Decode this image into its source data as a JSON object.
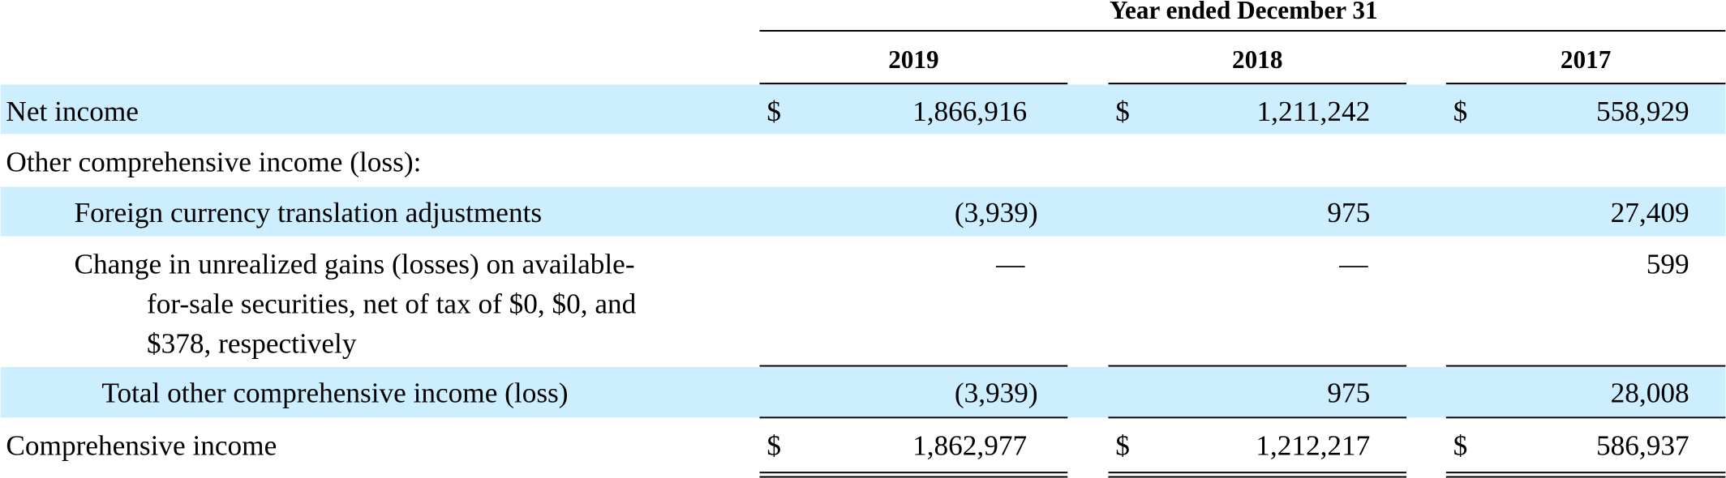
{
  "header": {
    "title": "Year ended December 31",
    "columns": [
      "2019",
      "2018",
      "2017"
    ]
  },
  "rows": [
    {
      "label": [
        "Net income"
      ],
      "currency": "$",
      "values": [
        "1,866,916",
        "1,211,242",
        "558,929"
      ]
    },
    {
      "label": [
        "Other comprehensive income (loss):"
      ]
    },
    {
      "label": [
        "Foreign currency translation adjustments"
      ],
      "values": [
        "(3,939)",
        "975",
        "27,409"
      ]
    },
    {
      "label": [
        "Change in unrealized gains (losses) on available-",
        "for-sale securities, net of tax of $0, $0, and",
        "$378, respectively"
      ],
      "values": [
        "—",
        "—",
        "599"
      ]
    },
    {
      "label": [
        "Total other comprehensive income (loss)"
      ],
      "values": [
        "(3,939)",
        "975",
        "28,008"
      ]
    },
    {
      "label": [
        "Comprehensive income"
      ],
      "currency": "$",
      "values": [
        "1,862,977",
        "1,212,217",
        "586,937"
      ]
    }
  ]
}
